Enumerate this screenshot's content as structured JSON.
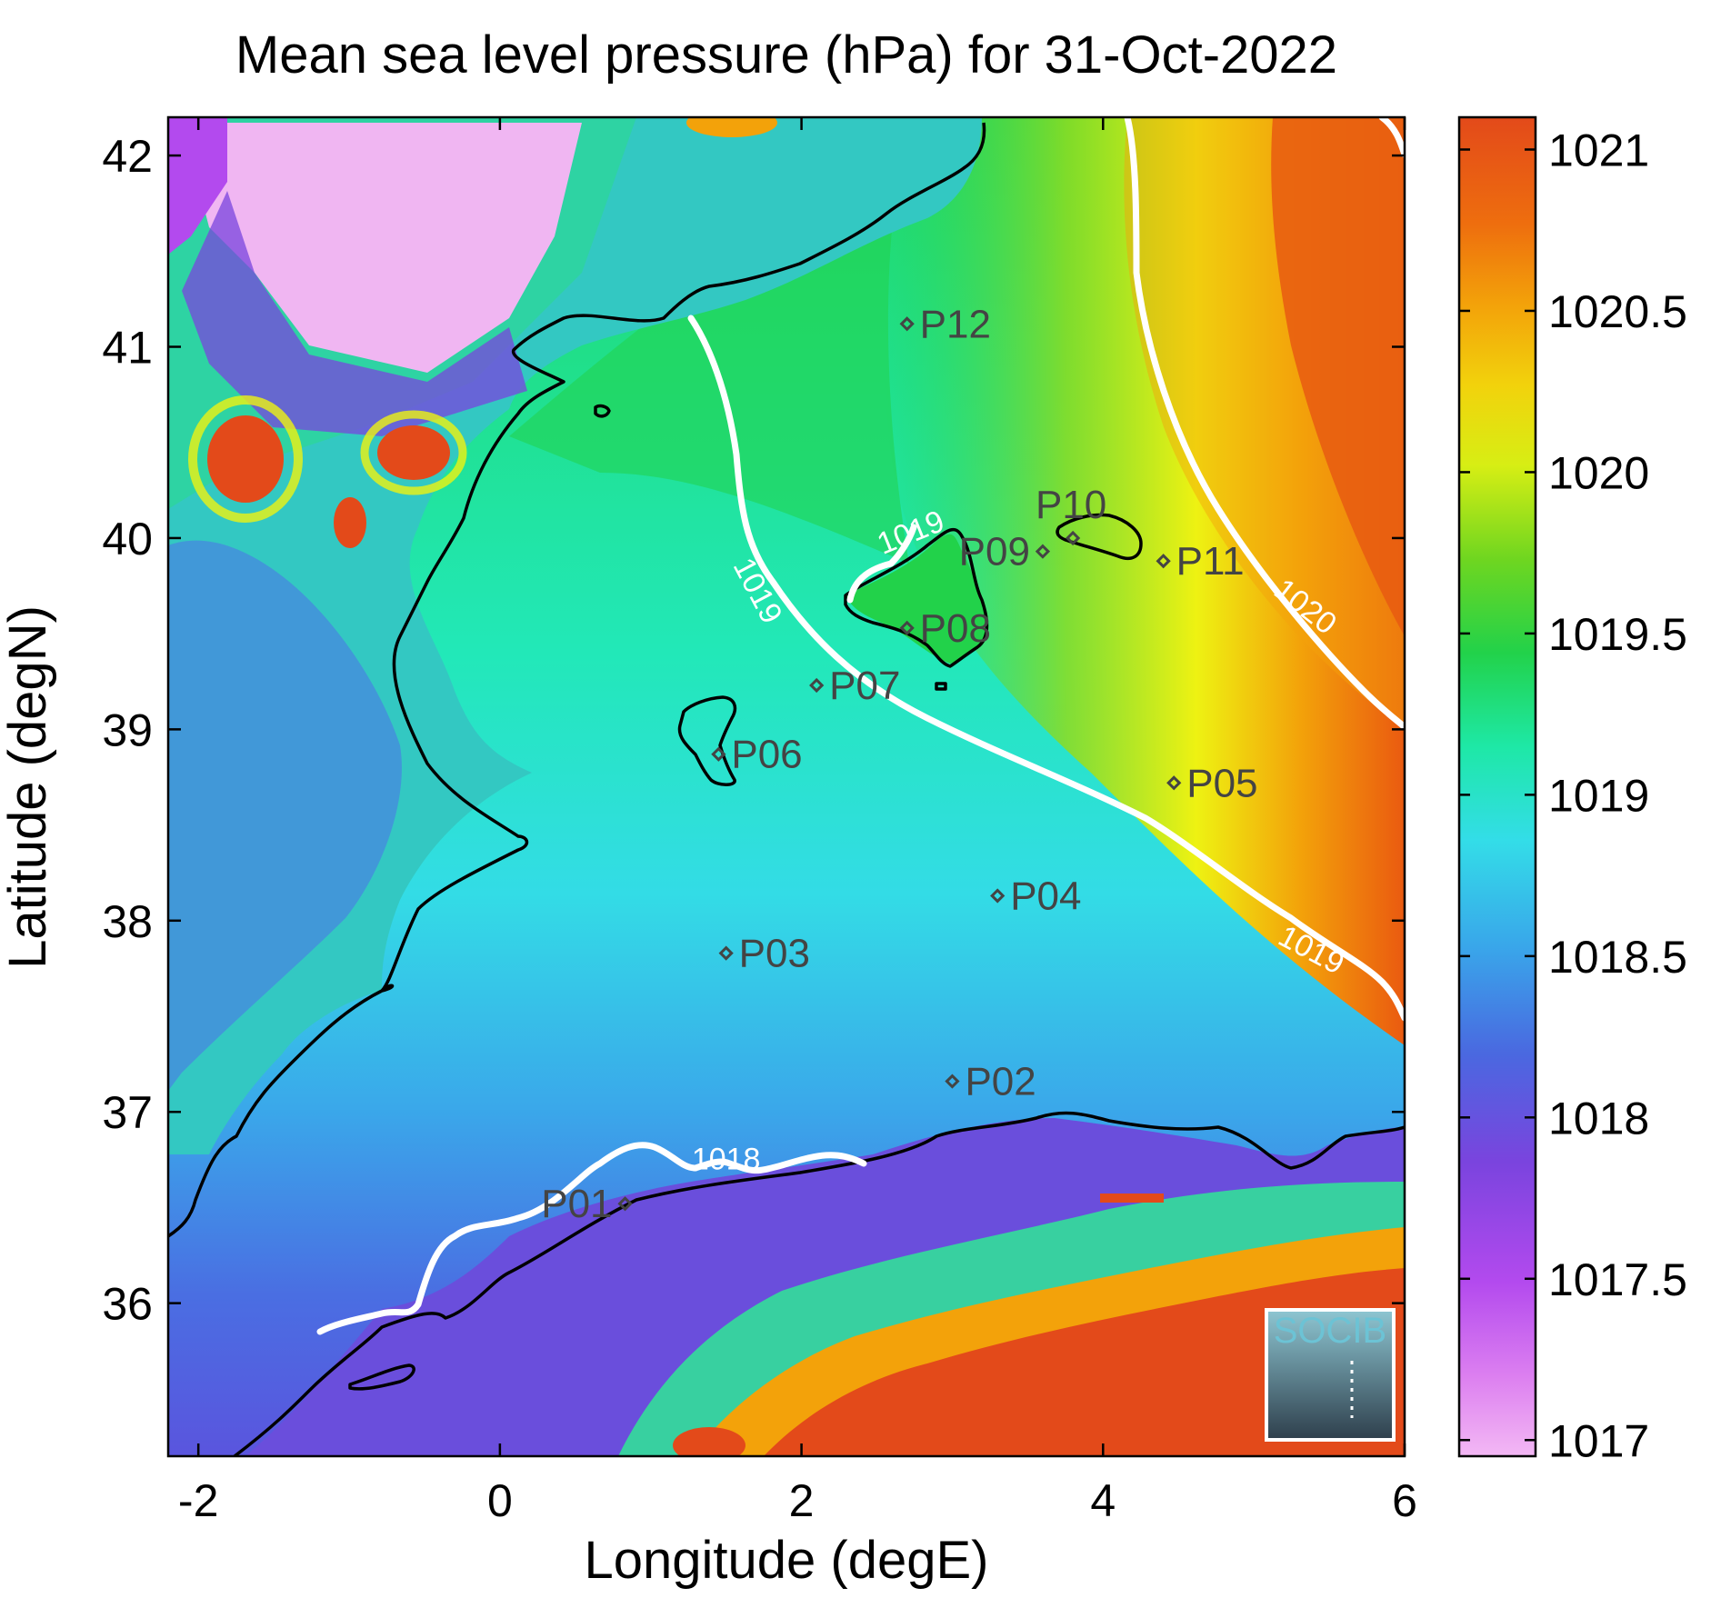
{
  "chart_data": {
    "type": "heatmap",
    "title": "Mean sea level pressure (hPa) for 31-Oct-2022",
    "xlabel": "Longitude (degE)",
    "ylabel": "Latitude (degN)",
    "xlim": [
      -2.2,
      6.0
    ],
    "ylim": [
      35.2,
      42.2
    ],
    "x_ticks": [
      -2,
      0,
      2,
      4,
      6
    ],
    "x_tick_labels": [
      "-2",
      "0",
      "2",
      "4",
      "6"
    ],
    "y_ticks": [
      36,
      37,
      38,
      39,
      40,
      41,
      42
    ],
    "y_tick_labels": [
      "36",
      "37",
      "38",
      "39",
      "40",
      "41",
      "42"
    ],
    "colorbar": {
      "range": [
        1016.95,
        1021.1
      ],
      "ticks": [
        1017,
        1017.5,
        1018,
        1018.5,
        1019,
        1019.5,
        1020,
        1020.5,
        1021
      ],
      "tick_labels": [
        "1017",
        "1017.5",
        "1018",
        "1018.5",
        "1019",
        "1019.5",
        "1020",
        "1020.5",
        "1021"
      ],
      "colors": [
        "#f3b8f4",
        "#cc44ee",
        "#7744dd",
        "#3a7fe6",
        "#33d7ea",
        "#1ee8a6",
        "#22d133",
        "#8fdc1e",
        "#eef212",
        "#f3a20a",
        "#ea5a10",
        "#e34a1a"
      ]
    },
    "contour_levels": [
      {
        "label": "1018",
        "value": 1018
      },
      {
        "label": "1019",
        "value": 1019
      },
      {
        "label": "1020",
        "value": 1020
      }
    ],
    "contour_label_positions": [
      {
        "label": "1018",
        "lon": 1.5,
        "lat": 36.7
      },
      {
        "label": "1019",
        "lon": 2.75,
        "lat": 39.98
      },
      {
        "label": "1019",
        "lon": 1.65,
        "lat": 39.7
      },
      {
        "label": "1019",
        "lon": 5.35,
        "lat": 37.8
      },
      {
        "label": "1020",
        "lon": 5.3,
        "lat": 39.6
      }
    ],
    "stations": [
      {
        "name": "P01",
        "lon": 0.83,
        "lat": 36.52,
        "label_side": "left"
      },
      {
        "name": "P02",
        "lon": 3.0,
        "lat": 37.16,
        "label_side": "right"
      },
      {
        "name": "P03",
        "lon": 1.5,
        "lat": 37.83,
        "label_side": "right"
      },
      {
        "name": "P04",
        "lon": 3.3,
        "lat": 38.13,
        "label_side": "right"
      },
      {
        "name": "P05",
        "lon": 4.47,
        "lat": 38.72,
        "label_side": "right"
      },
      {
        "name": "P06",
        "lon": 1.45,
        "lat": 38.87,
        "label_side": "right"
      },
      {
        "name": "P07",
        "lon": 2.1,
        "lat": 39.23,
        "label_side": "right"
      },
      {
        "name": "P08",
        "lon": 2.7,
        "lat": 39.53,
        "label_side": "right"
      },
      {
        "name": "P09",
        "lon": 3.6,
        "lat": 39.93,
        "label_side": "left"
      },
      {
        "name": "P10",
        "lon": 3.8,
        "lat": 40.0,
        "label_side": "above"
      },
      {
        "name": "P11",
        "lon": 4.4,
        "lat": 39.88,
        "label_side": "right"
      },
      {
        "name": "P12",
        "lon": 2.7,
        "lat": 41.12,
        "label_side": "right"
      }
    ]
  },
  "logo": {
    "text": "SOCIB"
  },
  "colors": {
    "coast": "#000000",
    "contour": "#ffffff",
    "station": "#444444",
    "logo_text": "#6cc3d5"
  }
}
